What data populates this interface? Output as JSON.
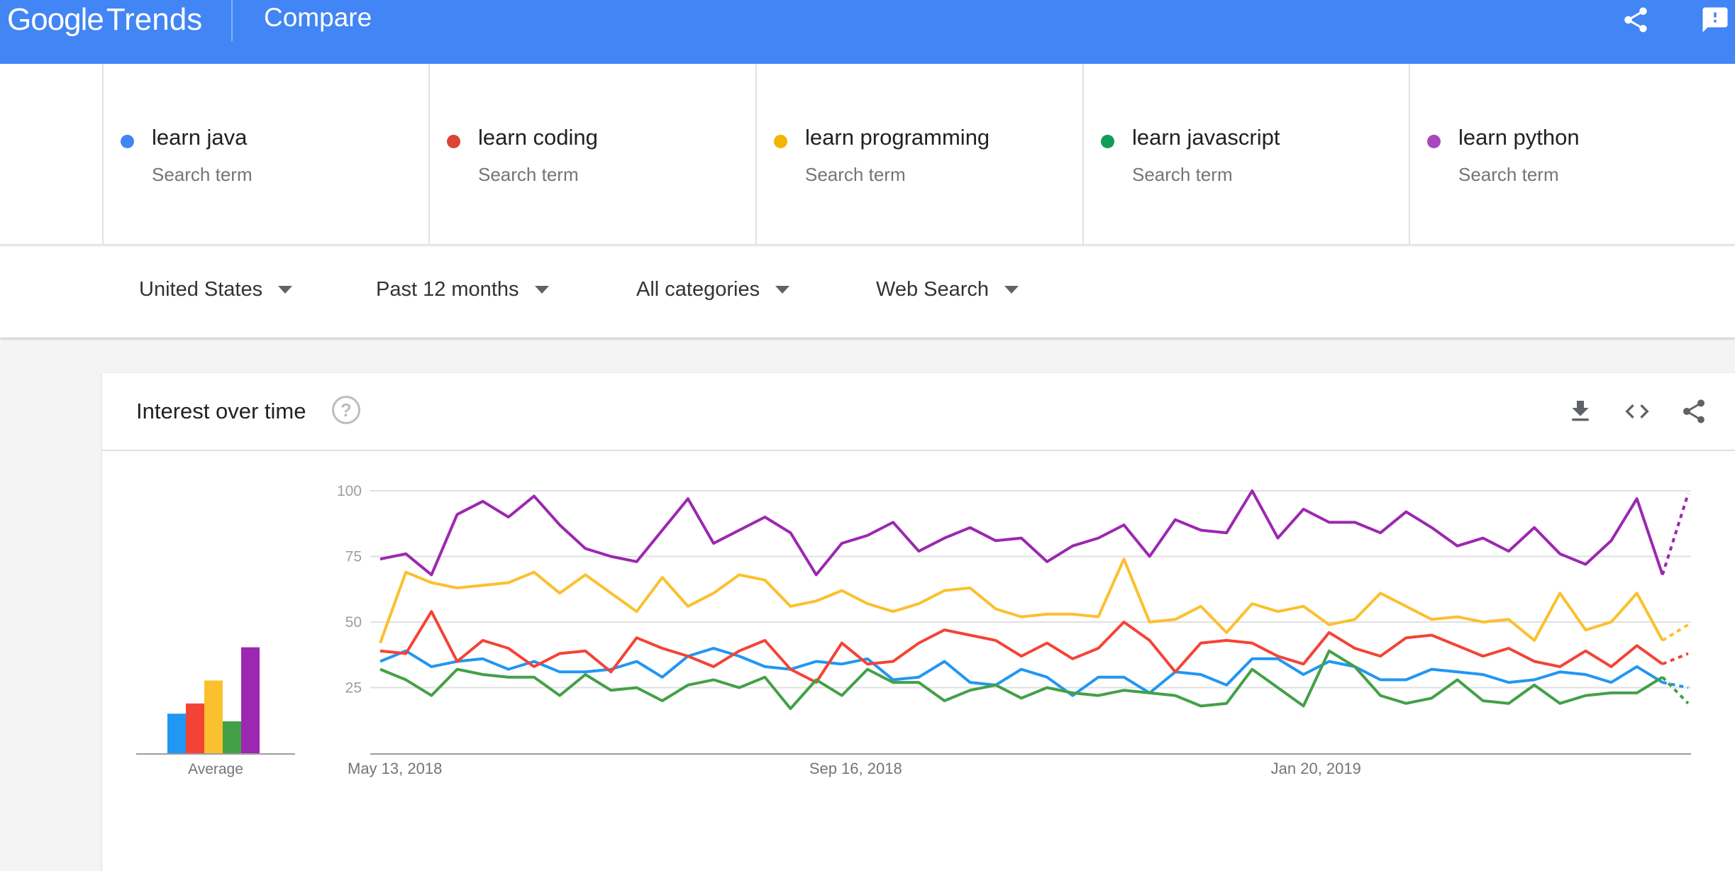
{
  "header": {
    "logo_google": "Google",
    "logo_trends": "Trends",
    "title": "Compare"
  },
  "terms": [
    {
      "name": "learn java",
      "subtitle": "Search term",
      "color": "#4285f4"
    },
    {
      "name": "learn coding",
      "subtitle": "Search term",
      "color": "#db4437"
    },
    {
      "name": "learn programming",
      "subtitle": "Search term",
      "color": "#f4b400"
    },
    {
      "name": "learn javascript",
      "subtitle": "Search term",
      "color": "#0f9d58"
    },
    {
      "name": "learn python",
      "subtitle": "Search term",
      "color": "#ab47bc"
    }
  ],
  "filters": {
    "region": "United States",
    "time": "Past 12 months",
    "category": "All categories",
    "search_type": "Web Search"
  },
  "card": {
    "title": "Interest over time",
    "help_glyph": "?"
  },
  "icons": {
    "header": [
      "share-icon",
      "feedback-icon"
    ],
    "card": [
      "download-icon",
      "embed-icon",
      "share-icon",
      "help-icon"
    ]
  },
  "chart_data": [
    {
      "type": "bar",
      "xlabel": "Average",
      "ylim": [
        0,
        100
      ],
      "categories": [
        "learn java",
        "learn coding",
        "learn programming",
        "learn javascript",
        "learn python"
      ],
      "values": [
        31,
        39,
        57,
        25,
        83
      ],
      "colors": [
        "#2196f3",
        "#f44336",
        "#fbc02d",
        "#43a047",
        "#9c27b0"
      ]
    },
    {
      "type": "line",
      "ylim": [
        0,
        100
      ],
      "yticks": [
        25,
        50,
        75,
        100
      ],
      "grid": true,
      "x_labels": [
        {
          "index": 0,
          "label": "May 13, 2018"
        },
        {
          "index": 18,
          "label": "Sep 16, 2018"
        },
        {
          "index": 36,
          "label": "Jan 20, 2019"
        }
      ],
      "partial_last_point": true,
      "series": [
        {
          "name": "learn java",
          "color": "#2196f3",
          "values": [
            35,
            39,
            33,
            35,
            36,
            32,
            35,
            31,
            31,
            32,
            35,
            29,
            37,
            40,
            37,
            33,
            32,
            35,
            34,
            36,
            28,
            29,
            35,
            27,
            26,
            32,
            29,
            22,
            29,
            29,
            23,
            31,
            30,
            26,
            36,
            36,
            30,
            35,
            33,
            28,
            28,
            32,
            31,
            30,
            27,
            28,
            31,
            30,
            27,
            33,
            27,
            25
          ]
        },
        {
          "name": "learn coding",
          "color": "#f44336",
          "values": [
            39,
            38,
            54,
            35,
            43,
            40,
            33,
            38,
            39,
            31,
            44,
            40,
            37,
            33,
            39,
            43,
            32,
            27,
            42,
            34,
            35,
            42,
            47,
            45,
            43,
            37,
            42,
            36,
            40,
            50,
            43,
            31,
            42,
            43,
            42,
            37,
            34,
            46,
            40,
            37,
            44,
            45,
            41,
            37,
            40,
            35,
            33,
            39,
            33,
            41,
            34,
            38
          ]
        },
        {
          "name": "learn programming",
          "color": "#fbc02d",
          "values": [
            42,
            69,
            65,
            63,
            64,
            65,
            69,
            61,
            68,
            61,
            54,
            67,
            56,
            61,
            68,
            66,
            56,
            58,
            62,
            57,
            54,
            57,
            62,
            63,
            55,
            52,
            53,
            53,
            52,
            74,
            50,
            51,
            56,
            46,
            57,
            54,
            56,
            49,
            51,
            61,
            56,
            51,
            52,
            50,
            51,
            43,
            61,
            47,
            50,
            61,
            43,
            49
          ]
        },
        {
          "name": "learn javascript",
          "color": "#43a047",
          "values": [
            32,
            28,
            22,
            32,
            30,
            29,
            29,
            22,
            30,
            24,
            25,
            20,
            26,
            28,
            25,
            29,
            17,
            28,
            22,
            32,
            27,
            27,
            20,
            24,
            26,
            21,
            25,
            23,
            22,
            24,
            23,
            22,
            18,
            19,
            32,
            25,
            18,
            39,
            33,
            22,
            19,
            21,
            28,
            20,
            19,
            26,
            19,
            22,
            23,
            23,
            29,
            19
          ]
        },
        {
          "name": "learn python",
          "color": "#9c27b0",
          "values": [
            74,
            76,
            68,
            91,
            96,
            90,
            98,
            87,
            78,
            75,
            73,
            85,
            97,
            80,
            85,
            90,
            84,
            68,
            80,
            83,
            88,
            77,
            82,
            86,
            81,
            82,
            73,
            79,
            82,
            87,
            75,
            89,
            85,
            84,
            100,
            82,
            93,
            88,
            88,
            84,
            92,
            86,
            79,
            82,
            77,
            86,
            76,
            72,
            81,
            97,
            68,
            99
          ]
        }
      ]
    }
  ]
}
